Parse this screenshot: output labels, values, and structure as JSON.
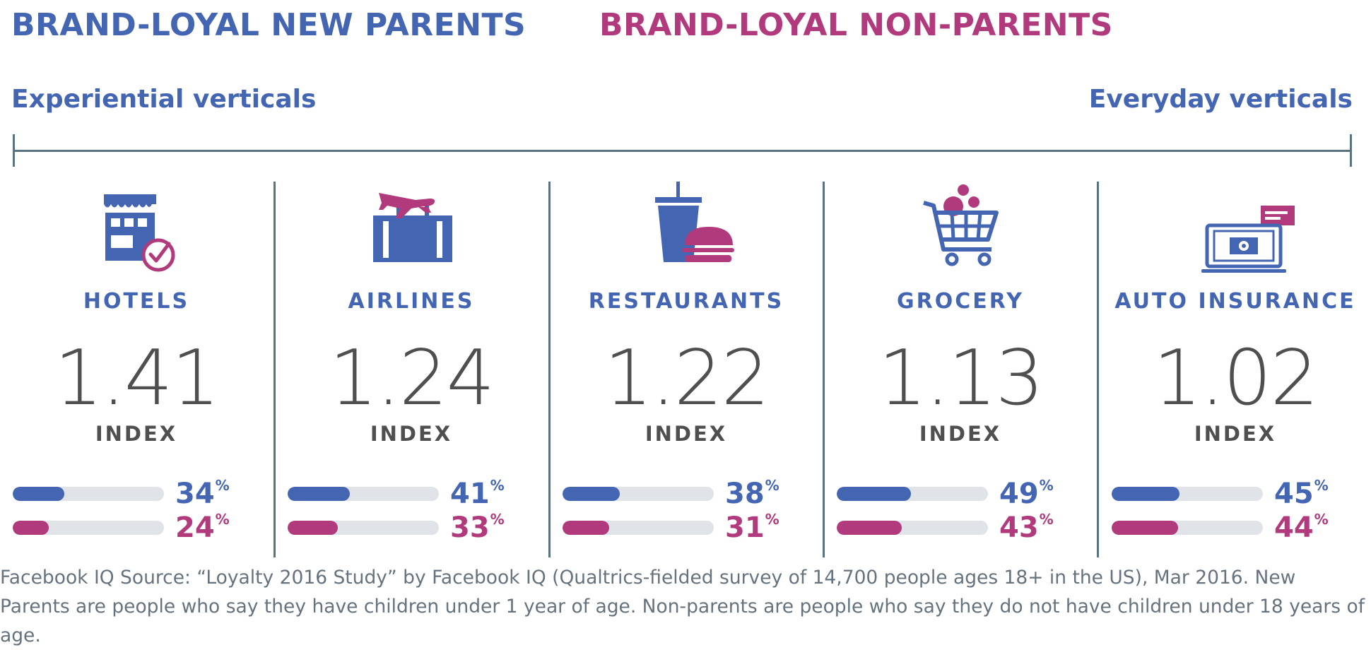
{
  "legend": {
    "new_parents": "BRAND-LOYAL NEW PARENTS",
    "non_parents": "BRAND-LOYAL NON-PARENTS",
    "new_parents_color": "#4466b2",
    "non_parents_color": "#b03a7c"
  },
  "axis": {
    "left_label": "Experiential verticals",
    "right_label": "Everyday verticals"
  },
  "chart_data": {
    "type": "bar",
    "categories": [
      "HOTELS",
      "AIRLINES",
      "RESTAURANTS",
      "GROCERY",
      "AUTO INSURANCE"
    ],
    "index_values": [
      "1.41",
      "1.24",
      "1.22",
      "1.13",
      "1.02"
    ],
    "index_label": "INDEX",
    "percent_unit": "%",
    "ylim": [
      0,
      100
    ],
    "series": [
      {
        "name": "BRAND-LOYAL NEW PARENTS",
        "values": [
          34,
          41,
          38,
          49,
          45
        ],
        "color": "#4466b2"
      },
      {
        "name": "BRAND-LOYAL NON-PARENTS",
        "values": [
          24,
          33,
          31,
          43,
          44
        ],
        "color": "#b03a7c"
      }
    ],
    "icons": [
      "hotel-icon",
      "airline-icon",
      "restaurant-icon",
      "grocery-cart-icon",
      "auto-insurance-icon"
    ]
  },
  "source": "Facebook IQ Source: “Loyalty 2016 Study” by Facebook IQ (Qualtrics-fielded survey of 14,700 people ages 18+ in the US), Mar 2016. New Parents are people who say they have children under 1 year of age. Non-parents are people who say they do not have children under 18 years of age."
}
